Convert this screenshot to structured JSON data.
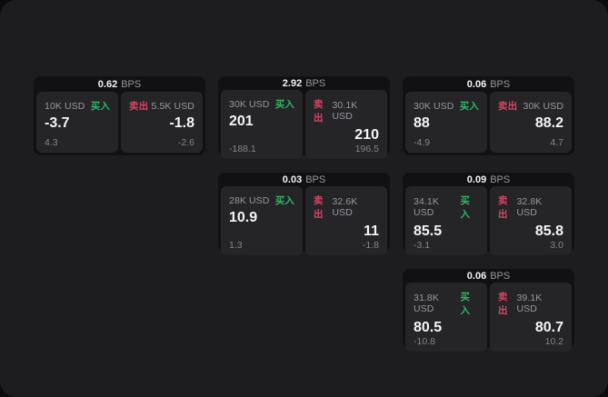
{
  "colors": {
    "page_bg": "#0c0c0d",
    "panel_bg": "#1d1d1f",
    "card_bg": "#111113",
    "subcard_bg": "#252528",
    "text_primary": "#f5f5f7",
    "text_muted": "#98989d",
    "text_delta": "#85858a",
    "buy_green": "#30b566",
    "sell_red": "#d6455f"
  },
  "labels": {
    "bps_unit": "BPS",
    "buy": "买入",
    "sell": "卖出"
  },
  "cards": [
    {
      "bps": "0.62",
      "buy": {
        "size": "10K USD",
        "value": "-3.7",
        "delta": "4.3"
      },
      "sell": {
        "size": "5.5K USD",
        "value": "-1.8",
        "delta": "-2.6"
      }
    },
    {
      "bps": "2.92",
      "buy": {
        "size": "30K USD",
        "value": "201",
        "delta": "-188.1"
      },
      "sell": {
        "size": "30.1K USD",
        "value": "210",
        "delta": "196.5"
      }
    },
    {
      "bps": "0.06",
      "buy": {
        "size": "30K USD",
        "value": "88",
        "delta": "-4.9"
      },
      "sell": {
        "size": "30K USD",
        "value": "88.2",
        "delta": "4.7"
      }
    },
    {
      "bps": "0.03",
      "buy": {
        "size": "28K USD",
        "value": "10.9",
        "delta": "1.3"
      },
      "sell": {
        "size": "32.6K USD",
        "value": "11",
        "delta": "-1.8"
      }
    },
    {
      "bps": "0.09",
      "buy": {
        "size": "34.1K USD",
        "value": "85.5",
        "delta": "-3.1"
      },
      "sell": {
        "size": "32.8K USD",
        "value": "85.8",
        "delta": "3.0"
      }
    },
    {
      "bps": "0.06",
      "buy": {
        "size": "31.8K USD",
        "value": "80.5",
        "delta": "-10.8"
      },
      "sell": {
        "size": "39.1K USD",
        "value": "80.7",
        "delta": "10.2"
      }
    }
  ]
}
